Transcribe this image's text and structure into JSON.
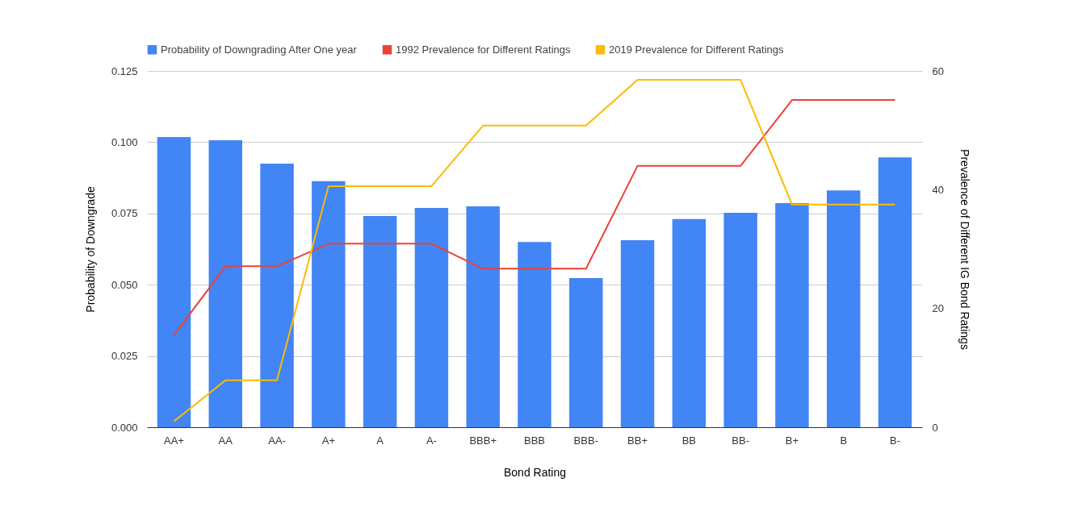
{
  "chart_data": {
    "type": "bar",
    "xlabel": "Bond Rating",
    "ylabel": "Probability of Downgrade",
    "y2label": "Prevalence of Different IG Bond Ratings",
    "categories": [
      "AA+",
      "AA",
      "AA-",
      "A+",
      "A",
      "A-",
      "BBB+",
      "BBB",
      "BBB-",
      "BB+",
      "BB",
      "BB-",
      "B+",
      "B",
      "B-"
    ],
    "series": [
      {
        "name": "Probability of Downgrading After One year",
        "color": "#4285f4",
        "values": [
          0.1018,
          0.1007,
          0.0925,
          0.0863,
          0.0741,
          0.0769,
          0.0775,
          0.065,
          0.0523,
          0.0656,
          0.073,
          0.0752,
          0.0786,
          0.0831,
          0.0947
        ]
      },
      {
        "name": "1992 Prevalence for Different Ratings",
        "type": "line",
        "axis": "y2",
        "color": "#ea4335",
        "values": [
          15.5,
          27.1,
          27.1,
          30.9,
          30.9,
          30.9,
          26.7,
          26.7,
          26.7,
          44,
          44,
          44,
          55.1,
          55.1,
          55.1
        ]
      },
      {
        "name": "2019 Prevalence for Different Ratings",
        "type": "line",
        "axis": "y2",
        "color": "#fbbc04",
        "values": [
          1,
          7.9,
          7.9,
          40.6,
          40.6,
          40.6,
          50.8,
          50.8,
          50.8,
          58.5,
          58.5,
          58.5,
          37.5,
          37.5,
          37.5
        ]
      }
    ],
    "ylim": [
      0,
      0.125
    ],
    "yticks": [
      {
        "value": 0,
        "label": "0.000"
      },
      {
        "value": 0.025,
        "label": "0.025"
      },
      {
        "value": 0.05,
        "label": "0.050"
      },
      {
        "value": 0.075,
        "label": "0.075"
      },
      {
        "value": 0.1,
        "label": "0.100"
      },
      {
        "value": 0.125,
        "label": "0.125"
      }
    ],
    "y2lim": [
      0,
      60
    ],
    "y2ticks": [
      0,
      20,
      40,
      60
    ],
    "grid": "y",
    "legend": "top",
    "line_style": "solid",
    "marker": "none"
  }
}
